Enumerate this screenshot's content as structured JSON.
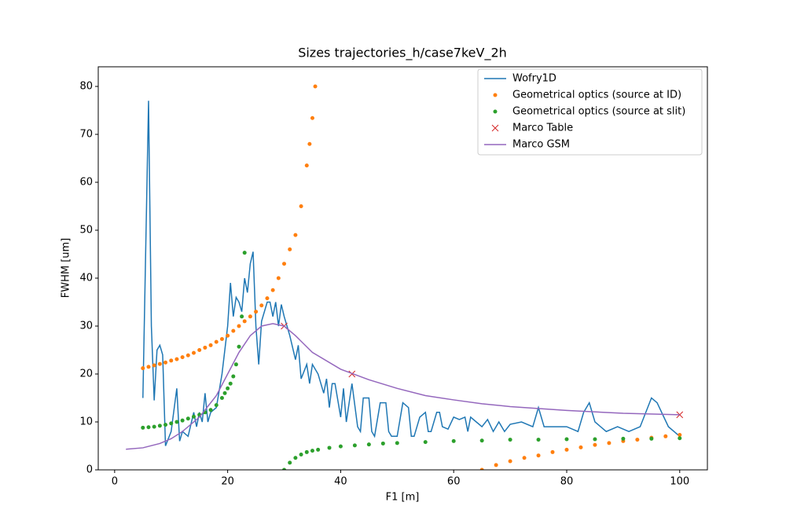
{
  "chart_data": {
    "type": "line",
    "title": "Sizes trajectories_h/case7keV_2h",
    "xlabel": "F1 [m]",
    "ylabel": "FWHM [um]",
    "xlim": [
      -2.9,
      104.9
    ],
    "ylim": [
      0,
      84.1
    ],
    "xticks": [
      0,
      20,
      40,
      60,
      80,
      100
    ],
    "yticks": [
      0,
      10,
      20,
      30,
      40,
      50,
      60,
      70,
      80
    ],
    "legend": "upper right",
    "series": [
      {
        "name": "Wofry1D",
        "color": "#1f77b4",
        "marker": "line",
        "x": [
          5,
          6,
          6.5,
          7,
          7.5,
          8,
          8.5,
          9,
          10,
          11,
          11.5,
          12,
          13,
          14,
          14.5,
          15,
          15.5,
          16,
          16.5,
          17,
          18,
          19,
          20,
          20.5,
          21,
          21.5,
          22,
          22.5,
          23,
          23.5,
          24,
          24.5,
          25,
          25.5,
          26,
          27,
          27.5,
          28,
          28.5,
          29,
          29.5,
          30,
          31,
          32,
          32.5,
          33,
          34,
          34.5,
          35,
          36,
          37,
          37.5,
          38,
          38.5,
          39,
          40,
          40.5,
          41,
          42,
          43,
          43.5,
          44,
          45,
          45.5,
          46,
          47,
          48,
          48.5,
          49,
          50,
          51,
          52,
          52.5,
          53,
          54,
          55,
          55.5,
          56,
          57,
          57.5,
          58,
          59,
          60,
          61,
          62,
          62.5,
          63,
          64,
          65,
          66,
          67,
          68,
          69,
          70,
          72,
          74,
          75,
          76,
          78,
          80,
          82,
          83,
          84,
          85,
          87,
          89,
          91,
          93,
          95,
          96,
          98,
          100
        ],
        "values": [
          15,
          77,
          30,
          14.5,
          25,
          26,
          24,
          5,
          8,
          17,
          6,
          8,
          7,
          12,
          9,
          12,
          10,
          16,
          10,
          12,
          13,
          20,
          30,
          39,
          32,
          36,
          35,
          33,
          40,
          37,
          43,
          45.5,
          30,
          22,
          31,
          35,
          35,
          32,
          35,
          30,
          34.5,
          32,
          28,
          23,
          26,
          19,
          22,
          18,
          22,
          20,
          16,
          19,
          13,
          18,
          18,
          11,
          17,
          10,
          18,
          9,
          8,
          15,
          15,
          8,
          7,
          14,
          14,
          8,
          7,
          7,
          14,
          13,
          7,
          7,
          11,
          12,
          8,
          8,
          12,
          12,
          9,
          8.5,
          11,
          10.5,
          11,
          8,
          11,
          10,
          9,
          10.5,
          8,
          10,
          8,
          9.5,
          10,
          9,
          13,
          9,
          9,
          9,
          8,
          12,
          14,
          10,
          8,
          9,
          8,
          9,
          15,
          14,
          9,
          7
        ]
      },
      {
        "name": "Geometrical optics (source at ID)",
        "color": "#ff7f0e",
        "marker": "dot",
        "x": [
          5,
          6,
          7,
          8,
          9,
          10,
          11,
          12,
          13,
          14,
          15,
          16,
          17,
          18,
          19,
          20,
          21,
          22,
          23,
          24,
          25,
          26,
          27,
          28,
          29,
          30,
          31,
          32,
          33,
          34,
          34.5,
          35,
          35.5,
          65,
          67.5,
          70,
          72.5,
          75,
          77.5,
          80,
          82.5,
          85,
          87.5,
          90,
          92.5,
          95,
          97.5,
          100
        ],
        "values": [
          21.2,
          21.5,
          21.8,
          22.1,
          22.4,
          22.8,
          23.1,
          23.5,
          23.9,
          24.4,
          25,
          25.5,
          26,
          26.7,
          27.3,
          28,
          29,
          30,
          31,
          32,
          33,
          34.3,
          35.8,
          37.5,
          40,
          43,
          46,
          49,
          55,
          63.5,
          68,
          73.4,
          80,
          0,
          1,
          1.8,
          2.5,
          3,
          3.7,
          4.2,
          4.7,
          5.2,
          5.6,
          6,
          6.3,
          6.7,
          7,
          7.3
        ]
      },
      {
        "name": "Geometrical optics (source at slit)",
        "color": "#2ca02c",
        "marker": "dot",
        "x": [
          5,
          6,
          7,
          8,
          9,
          10,
          11,
          12,
          13,
          14,
          15,
          16,
          17,
          18,
          19,
          19.5,
          20,
          20.5,
          21,
          21.5,
          22,
          22.5,
          23,
          30,
          31,
          32,
          33,
          34,
          35,
          36,
          38,
          40,
          42.5,
          45,
          47.5,
          50,
          55,
          60,
          65,
          70,
          75,
          80,
          85,
          90,
          95,
          100
        ],
        "values": [
          8.8,
          8.9,
          9,
          9.2,
          9.4,
          9.7,
          10,
          10.3,
          10.7,
          11.1,
          11.5,
          12,
          12.5,
          13.5,
          15,
          16,
          17,
          18,
          19.5,
          22,
          25.7,
          32,
          45.3,
          0,
          1.5,
          2.5,
          3.2,
          3.7,
          4,
          4.2,
          4.6,
          4.9,
          5.1,
          5.3,
          5.5,
          5.6,
          5.8,
          6,
          6.1,
          6.3,
          6.3,
          6.4,
          6.4,
          6.5,
          6.5,
          6.6
        ]
      },
      {
        "name": "Marco Table",
        "color": "#d62728",
        "marker": "x",
        "x": [
          30,
          42,
          100
        ],
        "values": [
          30,
          20,
          11.5
        ]
      },
      {
        "name": "Marco GSM",
        "color": "#9467bd",
        "marker": "line",
        "x": [
          2,
          5,
          8,
          10,
          12,
          15,
          18,
          20,
          22,
          24,
          26,
          28,
          30,
          32,
          35,
          40,
          45,
          50,
          55,
          60,
          65,
          70,
          80,
          90,
          100
        ],
        "values": [
          4.3,
          4.6,
          5.5,
          6.5,
          8,
          11,
          15.5,
          20,
          24.5,
          28,
          30,
          30.5,
          30,
          28,
          24.5,
          21,
          18.8,
          17,
          15.5,
          14.6,
          13.8,
          13.2,
          12.4,
          11.8,
          11.5
        ]
      }
    ]
  }
}
